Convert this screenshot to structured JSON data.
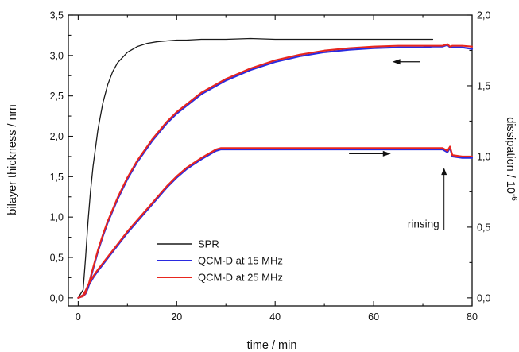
{
  "chart_data": {
    "type": "line",
    "title": "",
    "xlabel": "time / min",
    "ylabel": "bilayer thickness / nm",
    "y2label_base": "dissipation / 10",
    "y2label_exp": "-6",
    "xlim": [
      -2,
      80
    ],
    "ylim": [
      -0.1,
      3.5
    ],
    "y2lim": [
      -0.057,
      2.0
    ],
    "xticks": [
      0,
      20,
      40,
      60,
      80
    ],
    "xtick_labels": [
      "0",
      "20",
      "40",
      "60",
      "80"
    ],
    "yticks": [
      0,
      0.5,
      1,
      1.5,
      2,
      2.5,
      3,
      3.5
    ],
    "ytick_labels": [
      "0,0",
      "0,5",
      "1,0",
      "1,5",
      "2,0",
      "2,5",
      "3,0",
      "3,5"
    ],
    "y2ticks": [
      0,
      0.5,
      1,
      1.5,
      2
    ],
    "y2tick_labels": [
      "0,0",
      "0,5",
      "1,0",
      "1,5",
      "2,0"
    ],
    "grid": false,
    "legend_position": "bottom-left",
    "colors": {
      "SPR": "#1a1a1a",
      "QCM15": "#2a2ae0",
      "QCM25": "#e8261e",
      "axis": "#111111"
    },
    "series": [
      {
        "name": "SPR",
        "axis": "left",
        "x": [
          0,
          0.5,
          1,
          1.5,
          2,
          2.5,
          3,
          4,
          5,
          6,
          7,
          8,
          10,
          12,
          14,
          16,
          18,
          20,
          22,
          25,
          28,
          30,
          35,
          40,
          45,
          50,
          55,
          60,
          65,
          70,
          72
        ],
        "y": [
          0.0,
          0.05,
          0.1,
          0.5,
          0.95,
          1.32,
          1.62,
          2.08,
          2.41,
          2.64,
          2.8,
          2.91,
          3.04,
          3.11,
          3.15,
          3.17,
          3.18,
          3.19,
          3.19,
          3.2,
          3.2,
          3.2,
          3.21,
          3.2,
          3.2,
          3.2,
          3.2,
          3.2,
          3.2,
          3.2,
          3.2
        ]
      },
      {
        "name": "QCM-D at 15 MHz",
        "axis": "left",
        "x": [
          0,
          1,
          1.5,
          2,
          3,
          4,
          5,
          6,
          8,
          10,
          12,
          15,
          18,
          20,
          25,
          30,
          35,
          40,
          45,
          50,
          55,
          60,
          65,
          70,
          72,
          74,
          75,
          75.5,
          76,
          78,
          80
        ],
        "y": [
          0.0,
          0.02,
          0.05,
          0.12,
          0.35,
          0.57,
          0.76,
          0.93,
          1.22,
          1.47,
          1.68,
          1.94,
          2.16,
          2.28,
          2.52,
          2.69,
          2.82,
          2.92,
          2.99,
          3.04,
          3.07,
          3.09,
          3.1,
          3.1,
          3.11,
          3.11,
          3.13,
          3.1,
          3.1,
          3.1,
          3.08
        ]
      },
      {
        "name": "QCM-D at 25 MHz",
        "axis": "left",
        "x": [
          0,
          1,
          1.5,
          2,
          3,
          4,
          5,
          6,
          8,
          10,
          12,
          15,
          18,
          20,
          25,
          30,
          35,
          40,
          45,
          50,
          55,
          60,
          65,
          70,
          72,
          74,
          75,
          75.5,
          76,
          78,
          80
        ],
        "y": [
          0.0,
          0.02,
          0.06,
          0.14,
          0.37,
          0.59,
          0.78,
          0.95,
          1.24,
          1.49,
          1.7,
          1.96,
          2.18,
          2.3,
          2.54,
          2.71,
          2.84,
          2.94,
          3.01,
          3.06,
          3.09,
          3.11,
          3.12,
          3.12,
          3.12,
          3.12,
          3.14,
          3.11,
          3.12,
          3.12,
          3.11
        ]
      },
      {
        "name": "QCM-D at 15 MHz",
        "axis": "right",
        "x": [
          0,
          1,
          1.5,
          2,
          3,
          4,
          6,
          8,
          10,
          12,
          15,
          18,
          20,
          22,
          25,
          27,
          28,
          29,
          30,
          35,
          40,
          50,
          60,
          70,
          74,
          75,
          75.5,
          76,
          78,
          80
        ],
        "y": [
          0.0,
          0.02,
          0.05,
          0.08,
          0.14,
          0.19,
          0.28,
          0.37,
          0.46,
          0.54,
          0.66,
          0.78,
          0.85,
          0.91,
          0.98,
          1.02,
          1.04,
          1.05,
          1.05,
          1.05,
          1.05,
          1.05,
          1.05,
          1.05,
          1.05,
          1.03,
          1.06,
          1.0,
          0.99,
          0.99
        ]
      },
      {
        "name": "QCM-D at 25 MHz",
        "axis": "right",
        "x": [
          0,
          1,
          1.5,
          2,
          3,
          4,
          6,
          8,
          10,
          12,
          15,
          18,
          20,
          22,
          25,
          27,
          28,
          29,
          30,
          35,
          40,
          50,
          60,
          70,
          74,
          75,
          75.5,
          76,
          78,
          80
        ],
        "y": [
          0.0,
          0.02,
          0.05,
          0.09,
          0.15,
          0.2,
          0.29,
          0.38,
          0.47,
          0.55,
          0.67,
          0.79,
          0.86,
          0.92,
          0.99,
          1.03,
          1.05,
          1.06,
          1.06,
          1.06,
          1.06,
          1.06,
          1.06,
          1.06,
          1.06,
          1.04,
          1.07,
          1.01,
          1.0,
          1.0
        ]
      }
    ],
    "legend": [
      {
        "label": "SPR",
        "key": "SPR"
      },
      {
        "label": "QCM-D at 15 MHz",
        "key": "QCM15"
      },
      {
        "label": "QCM-D at 25 MHz",
        "key": "QCM25"
      }
    ],
    "annotations": [
      {
        "text": "rinsing",
        "arrow": "up",
        "x": 74.3,
        "y_from": 0.48,
        "y_to": 0.92,
        "axis": "right"
      },
      {
        "text": "",
        "arrow": "left",
        "x_from": 69.5,
        "x_to": 63.8,
        "y": 1.67,
        "axis": "right"
      },
      {
        "text": "",
        "arrow": "right",
        "x_from": 55,
        "x_to": 63.5,
        "y": 1.02,
        "axis": "right"
      }
    ]
  }
}
